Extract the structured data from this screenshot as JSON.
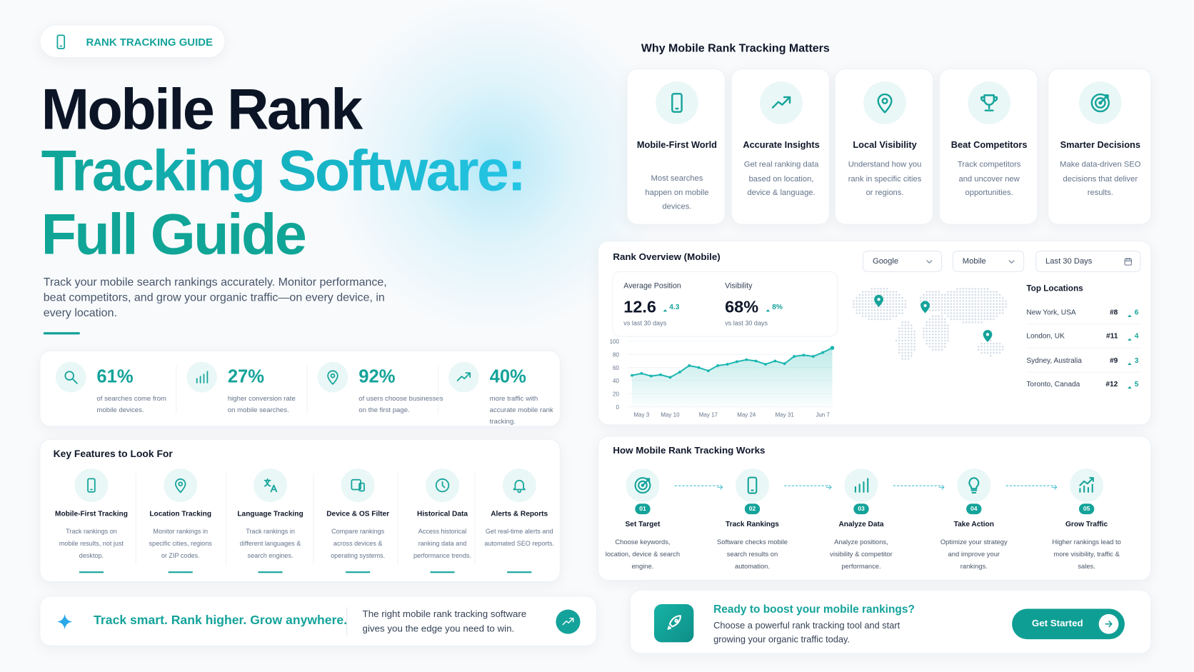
{
  "badge": "RANK TRACKING GUIDE",
  "hero": {
    "title_line1": "Mobile Rank",
    "title_line2": "Tracking Software:",
    "title_line3": "Full Guide",
    "description": "Track your mobile search rankings accurately. Monitor performance, beat competitors, and grow your organic traffic—on every device, in every location."
  },
  "stats": [
    {
      "value": "61%",
      "text": "of searches come from mobile devices."
    },
    {
      "value": "27%",
      "text": "higher conversion rate on mobile searches."
    },
    {
      "value": "92%",
      "text": "of users choose businesses on the first page."
    },
    {
      "value": "40%",
      "text": "more traffic with accurate mobile rank tracking."
    }
  ],
  "features": {
    "title": "Key Features to Look For",
    "items": [
      {
        "title": "Mobile-First Tracking",
        "text": "Track rankings on mobile results, not just desktop."
      },
      {
        "title": "Location Tracking",
        "text": "Monitor rankings in specific cities, regions or ZIP codes."
      },
      {
        "title": "Language Tracking",
        "text": "Track rankings in different languages & search engines."
      },
      {
        "title": "Device & OS Filter",
        "text": "Compare rankings across devices & operating systems."
      },
      {
        "title": "Historical Data",
        "text": "Access historical ranking data and performance trends."
      },
      {
        "title": "Alerts & Reports",
        "text": "Get real-time alerts and automated SEO reports."
      }
    ]
  },
  "tagline": {
    "title": "Track smart. Rank higher. Grow anywhere.",
    "text": "The right mobile rank tracking software gives you the edge you need to win."
  },
  "why": {
    "title": "Why Mobile Rank Tracking Matters",
    "items": [
      {
        "title": "Mobile-First World",
        "text": "Most searches happen on mobile devices."
      },
      {
        "title": "Accurate Insights",
        "text": "Get real ranking data based on location, device & language."
      },
      {
        "title": "Local Visibility",
        "text": "Understand how you rank in specific cities or regions."
      },
      {
        "title": "Beat Competitors",
        "text": "Track competitors and uncover new opportunities."
      },
      {
        "title": "Smarter Decisions",
        "text": "Make data-driven SEO decisions that deliver results."
      }
    ]
  },
  "overview": {
    "title": "Rank Overview (Mobile)",
    "filters": [
      "Google",
      "Mobile",
      "Last 30 Days"
    ],
    "metrics": [
      {
        "label": "Average Position",
        "value": "12.6",
        "change": "4.3",
        "note": "vs last 30 days"
      },
      {
        "label": "Visibility",
        "value": "68%",
        "change": "8%",
        "note": "vs last 30 days"
      }
    ],
    "chart": {
      "type": "line",
      "color": "#19b5b0",
      "grid": true,
      "ylim": [
        0,
        100
      ],
      "yticks": [
        0,
        20,
        40,
        60,
        80,
        100
      ],
      "categories": [
        null,
        "May 3",
        null,
        null,
        "May 10",
        null,
        null,
        null,
        "May 17",
        null,
        null,
        null,
        "May 24",
        null,
        null,
        null,
        "May 31",
        null,
        null,
        null,
        "Jun 7",
        null
      ],
      "values": [
        48,
        51,
        47,
        49,
        45,
        53,
        63,
        60,
        55,
        63,
        65,
        69,
        72,
        70,
        65,
        70,
        66,
        77,
        79,
        77,
        83,
        90
      ]
    },
    "locations": {
      "title": "Top Locations",
      "rows": [
        {
          "city": "New York, USA",
          "rank": "#8",
          "change": "6"
        },
        {
          "city": "London, UK",
          "rank": "#11",
          "change": "4"
        },
        {
          "city": "Sydney, Australia",
          "rank": "#9",
          "change": "3"
        },
        {
          "city": "Toronto, Canada",
          "rank": "#12",
          "change": "5"
        }
      ]
    }
  },
  "how": {
    "title": "How Mobile Rank Tracking Works",
    "steps": [
      {
        "number": "01",
        "title": "Set Target",
        "text": "Choose keywords, location, device & search engine."
      },
      {
        "number": "02",
        "title": "Track Rankings",
        "text": "Software checks mobile search results on automation."
      },
      {
        "number": "03",
        "title": "Analyze Data",
        "text": "Analyze positions, visibility & competitor performance."
      },
      {
        "number": "04",
        "title": "Take Action",
        "text": "Optimize your strategy and improve your rankings."
      },
      {
        "number": "05",
        "title": "Grow Traffic",
        "text": "Higher rankings lead to more visibility, traffic & sales."
      }
    ]
  },
  "cta": {
    "title": "Ready to boost your mobile rankings?",
    "text": "Choose a powerful rank tracking tool and start growing your organic traffic today.",
    "button": "Get Started"
  }
}
